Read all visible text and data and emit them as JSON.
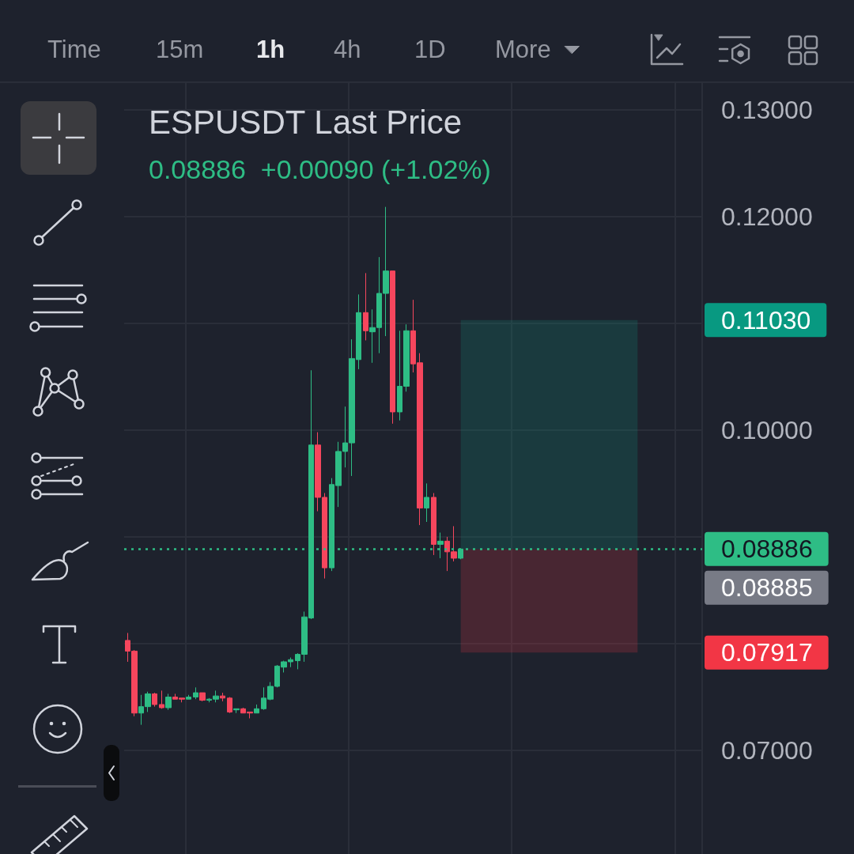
{
  "chart_data": {
    "type": "candlestick",
    "title": "ESPUSDT Last Price",
    "subtitle": "0.08886  +0.00090 (+1.02%)",
    "annotations": [
      "Time",
      "15m",
      "1h",
      "4h",
      "1D",
      "More",
      "0.11030",
      "0.08885",
      "0.07917"
    ],
    "categories": [
      null,
      null,
      null,
      null,
      null,
      null,
      null,
      null,
      null,
      null,
      null,
      null,
      null,
      null,
      null,
      null,
      null,
      null,
      null,
      null,
      null,
      null,
      null,
      null,
      null,
      null,
      null,
      null,
      null,
      null,
      null,
      null,
      null,
      null,
      null,
      null,
      null,
      null,
      null,
      null,
      null,
      null,
      null,
      null,
      null,
      null,
      null,
      null,
      null,
      null,
      null,
      null,
      null,
      null,
      null,
      null,
      null,
      null,
      null,
      null,
      null,
      null,
      null,
      null,
      null,
      null,
      null,
      null,
      null,
      null,
      null,
      null,
      null,
      null,
      null,
      null,
      null,
      null,
      null,
      null,
      null,
      null,
      null,
      null,
      null
    ],
    "ohlc": [
      [
        0.0803,
        0.081,
        0.0783,
        0.0793
      ],
      [
        0.0793,
        0.0794,
        0.0732,
        0.0735
      ],
      [
        0.0735,
        0.0752,
        0.0724,
        0.0741
      ],
      [
        0.0741,
        0.0755,
        0.0736,
        0.0753
      ],
      [
        0.0753,
        0.0754,
        0.0741,
        0.0743
      ],
      [
        0.0743,
        0.0756,
        0.0739,
        0.074
      ],
      [
        0.074,
        0.0753,
        0.0738,
        0.075
      ],
      [
        0.075,
        0.0753,
        0.0748,
        0.0748
      ],
      [
        0.0749,
        0.0749,
        0.0745,
        0.0748
      ],
      [
        0.0748,
        0.0752,
        0.0748,
        0.075
      ],
      [
        0.075,
        0.0759,
        0.0748,
        0.0754
      ],
      [
        0.0754,
        0.0754,
        0.0746,
        0.0747
      ],
      [
        0.0747,
        0.0749,
        0.0745,
        0.0748
      ],
      [
        0.0748,
        0.0756,
        0.0745,
        0.0751
      ],
      [
        0.0751,
        0.0754,
        0.0746,
        0.0749
      ],
      [
        0.0749,
        0.075,
        0.0735,
        0.0736
      ],
      [
        0.0738,
        0.0739,
        0.0735,
        0.0739
      ],
      [
        0.0739,
        0.074,
        0.0735,
        0.0735
      ],
      [
        0.0736,
        0.0736,
        0.073,
        0.0735
      ],
      [
        0.0735,
        0.0743,
        0.0735,
        0.0739
      ],
      [
        0.0739,
        0.0759,
        0.0738,
        0.0749
      ],
      [
        0.0748,
        0.0764,
        0.0747,
        0.076
      ],
      [
        0.076,
        0.078,
        0.0759,
        0.0779
      ],
      [
        0.0778,
        0.0784,
        0.0773,
        0.0783
      ],
      [
        0.0783,
        0.0787,
        0.0778,
        0.0785
      ],
      [
        0.0784,
        0.0791,
        0.0776,
        0.079
      ],
      [
        0.079,
        0.083,
        0.0783,
        0.0825
      ],
      [
        0.0824,
        0.1056,
        0.0823,
        0.0986
      ],
      [
        0.0986,
        0.0998,
        0.0924,
        0.0937
      ],
      [
        0.0937,
        0.0941,
        0.0861,
        0.0871
      ],
      [
        0.0871,
        0.0955,
        0.0868,
        0.0949
      ],
      [
        0.0948,
        0.0989,
        0.0928,
        0.098
      ],
      [
        0.098,
        0.1022,
        0.0965,
        0.0988
      ],
      [
        0.0988,
        0.1085,
        0.0957,
        0.1067
      ],
      [
        0.1066,
        0.1127,
        0.1057,
        0.111
      ],
      [
        0.111,
        0.1147,
        0.1084,
        0.1093
      ],
      [
        0.1092,
        0.1113,
        0.1063,
        0.1096
      ],
      [
        0.1096,
        0.1162,
        0.1072,
        0.1128
      ],
      [
        0.1128,
        0.1209,
        0.1088,
        0.1149
      ],
      [
        0.1149,
        0.1149,
        0.1006,
        0.1017
      ],
      [
        0.1017,
        0.1093,
        0.1009,
        0.1041
      ],
      [
        0.1041,
        0.1099,
        0.1036,
        0.1093
      ],
      [
        0.1093,
        0.1122,
        0.1054,
        0.1062
      ],
      [
        0.1063,
        0.1072,
        0.0911,
        0.0927
      ],
      [
        0.0927,
        0.095,
        0.0914,
        0.0937
      ],
      [
        0.0937,
        0.0941,
        0.0883,
        0.0893
      ],
      [
        0.0893,
        0.0904,
        0.088,
        0.0896
      ],
      [
        0.0896,
        0.09,
        0.0868,
        0.0886
      ],
      [
        0.0886,
        0.091,
        0.0877,
        0.088
      ],
      [
        0.088,
        0.08886,
        0.0879,
        0.08886
      ],
      null,
      null,
      null,
      null,
      null,
      null,
      null,
      null,
      null,
      null,
      null,
      null,
      null,
      null,
      null,
      null,
      null,
      null,
      null,
      null,
      null,
      null,
      null,
      null,
      null,
      null,
      null,
      null,
      null,
      null,
      null,
      null,
      null,
      null,
      null
    ],
    "colors": [
      "#f6465d",
      "#f6465d",
      "#2ebd85",
      "#2ebd85",
      "#f6465d",
      "#f6465d",
      "#2ebd85",
      "#f6465d",
      "#f6465d",
      "#2ebd85",
      "#2ebd85",
      "#f6465d",
      "#2ebd85",
      "#2ebd85",
      "#f6465d",
      "#f6465d",
      "#2ebd85",
      "#f6465d",
      "#f6465d",
      "#2ebd85",
      "#2ebd85",
      "#2ebd85",
      "#2ebd85",
      "#2ebd85",
      "#2ebd85",
      "#2ebd85",
      "#2ebd85",
      "#2ebd85",
      "#f6465d",
      "#f6465d",
      "#2ebd85",
      "#2ebd85",
      "#2ebd85",
      "#2ebd85",
      "#2ebd85",
      "#f6465d",
      "#2ebd85",
      "#2ebd85",
      "#2ebd85",
      "#f6465d",
      "#2ebd85",
      "#2ebd85",
      "#f6465d",
      "#f6465d",
      "#2ebd85",
      "#f6465d",
      "#2ebd85",
      "#f6465d",
      "#f6465d",
      "#2ebd85",
      null,
      null,
      null,
      null,
      null,
      null,
      null,
      null,
      null,
      null,
      null,
      null,
      null,
      null,
      null,
      null,
      null,
      null,
      null,
      null,
      null,
      null,
      null,
      null,
      null,
      null,
      null,
      null,
      null,
      null,
      null,
      null,
      null,
      null,
      null
    ],
    "ylim": [
      0.0603,
      0.1325
    ],
    "yticks": [
      {
        "value": 0.07,
        "label": "0.07000"
      },
      {
        "value": 0.08,
        "label": null
      },
      {
        "value": 0.09,
        "label": null
      },
      {
        "value": 0.1,
        "label": "0.10000"
      },
      {
        "value": 0.11,
        "label": null
      },
      {
        "value": 0.12,
        "label": "0.12000"
      },
      {
        "value": 0.13,
        "label": "0.13000"
      }
    ],
    "grid": true,
    "tick_labels": "y",
    "bands": [
      {
        "axis": "y",
        "from": 0.08885,
        "to": 0.1103,
        "color": "#089981"
      },
      {
        "axis": "y",
        "from": 0.07917,
        "to": 0.08885,
        "color": "#f23645"
      }
    ],
    "ref_lines": [
      {
        "axis": "y",
        "value": 0.08886,
        "label": "0.08886",
        "color": "#2ebd85",
        "line_style": "dotted"
      }
    ]
  }
}
